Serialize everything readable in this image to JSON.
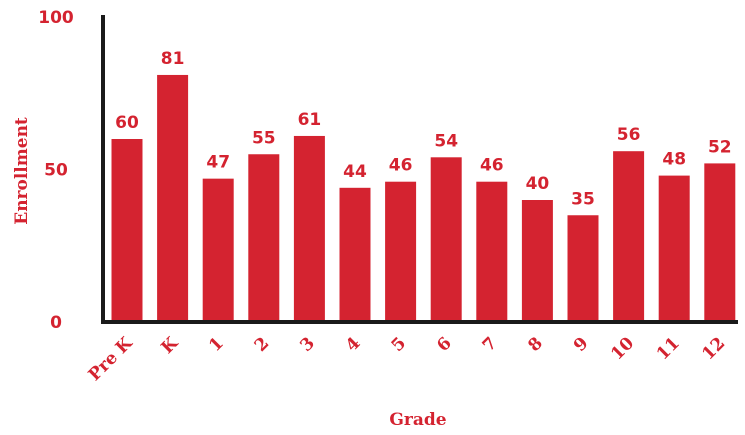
{
  "colors": {
    "bar": "#d42330",
    "text": "#d42330",
    "axis": "#1a1a1a"
  },
  "chart_data": {
    "type": "bar",
    "title": "",
    "xlabel": "Grade",
    "ylabel": "Enrollment",
    "categories": [
      "Pre K",
      "K",
      "1",
      "2",
      "3",
      "4",
      "5",
      "6",
      "7",
      "8",
      "9",
      "10",
      "11",
      "12"
    ],
    "values": [
      60,
      81,
      47,
      55,
      61,
      44,
      46,
      54,
      46,
      40,
      35,
      56,
      48,
      52
    ],
    "ylim": [
      0,
      100
    ],
    "yticks": [
      "0",
      "50",
      "100"
    ],
    "grid": false,
    "legend": "none",
    "data_labels": true
  }
}
